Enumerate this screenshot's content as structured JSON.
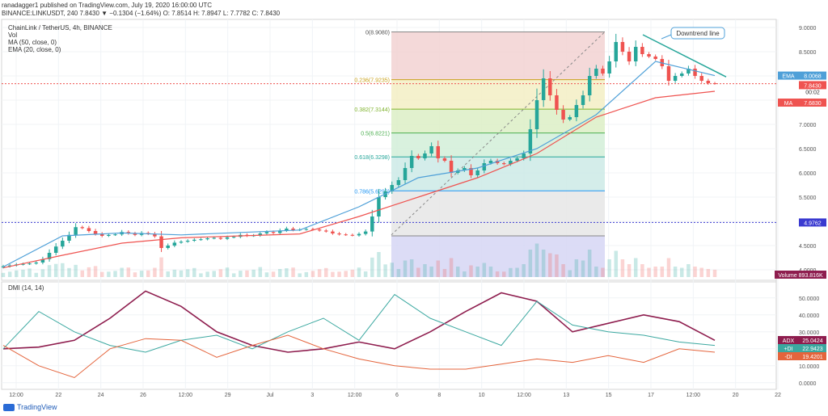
{
  "header": {
    "line1": "ranadagger1 published on TradingView.com, July 19, 2020 16:00:00 UTC",
    "line2": "BINANCE:LINKUSDT, 240  7.8430  ▼ −0.1304 (−1.64%)  O: 7.8514  H: 7.8947  L: 7.7782  C: 7.8430",
    "symbol": "ChainLink / TetherUS, 4h, BINANCE",
    "ind_vol": "Vol",
    "ind_ma": "MA (50, close, 0)",
    "ind_ema": "EMA (20, close, 0)",
    "dmi_label": "DMI (14, 14)"
  },
  "footer": {
    "brand": "TradingView"
  },
  "colors": {
    "up": "#26a69a",
    "down": "#ef5350",
    "ma": "#ef5350",
    "ema": "#4fa0d8",
    "adx": "#8e1d4e",
    "plus_di": "#3ba8a0",
    "minus_di": "#e4643c",
    "trendline": "#26a69a",
    "price_line": "#ef5350"
  },
  "chart_data": [
    {
      "type": "candlestick",
      "title": "ChainLink / TetherUS, 4h, BINANCE",
      "timeframe": "4h",
      "x_ticks": [
        "12:00",
        "22",
        "24",
        "26",
        "12:00",
        "29",
        "Jul",
        "3",
        "12:00",
        "6",
        "8",
        "10",
        "12:00",
        "13",
        "15",
        "17",
        "12:00",
        "20",
        "22"
      ],
      "y_ticks": [
        "4.0000",
        "4.5000",
        "5.0000",
        "5.5000",
        "6.0000",
        "6.5000",
        "7.0000",
        "7.5000",
        "8.0000",
        "8.5000",
        "9.0000"
      ],
      "ylim": [
        3.85,
        9.1
      ],
      "series": [
        {
          "name": "LINKUSDT close (approx.)",
          "values": [
            4.07,
            4.09,
            4.11,
            4.12,
            4.13,
            4.15,
            4.22,
            4.35,
            4.48,
            4.6,
            4.72,
            4.88,
            4.86,
            4.8,
            4.74,
            4.7,
            4.72,
            4.73,
            4.78,
            4.75,
            4.72,
            4.76,
            4.74,
            4.69,
            4.45,
            4.5,
            4.56,
            4.58,
            4.6,
            4.62,
            4.63,
            4.65,
            4.66,
            4.64,
            4.67,
            4.68,
            4.72,
            4.7,
            4.71,
            4.75,
            4.78,
            4.76,
            4.81,
            4.85,
            4.82,
            4.83,
            4.84,
            4.83,
            4.81,
            4.79,
            4.75,
            4.73,
            4.72,
            4.71,
            4.74,
            4.79,
            5.1,
            5.5,
            5.62,
            5.75,
            5.85,
            6.1,
            6.35,
            6.3,
            6.4,
            6.55,
            6.3,
            6.25,
            6.0,
            6.05,
            6.1,
            5.95,
            6.05,
            6.2,
            6.25,
            6.2,
            6.18,
            6.25,
            6.3,
            6.4,
            6.9,
            7.5,
            7.95,
            7.6,
            7.3,
            7.1,
            7.15,
            7.4,
            7.6,
            8.0,
            8.15,
            8.05,
            8.3,
            8.7,
            8.5,
            8.3,
            8.6,
            8.45,
            8.4,
            8.35,
            8.2,
            7.9,
            8.0,
            8.05,
            8.15,
            8.0,
            7.9,
            7.85,
            7.84
          ]
        },
        {
          "name": "MA (50, close, 0)",
          "values": [
            4.04,
            4.3,
            4.55,
            4.66,
            4.7,
            4.74,
            5.1,
            5.5,
            5.9,
            6.4,
            7.15,
            7.55,
            7.683
          ]
        },
        {
          "name": "EMA (20, close, 0)",
          "values": [
            4.06,
            4.7,
            4.76,
            4.72,
            4.77,
            4.82,
            5.3,
            5.9,
            6.1,
            6.5,
            7.2,
            8.3,
            8.0068
          ]
        }
      ],
      "fibonacci": [
        {
          "level": "0(8.9080)",
          "value": 8.908
        },
        {
          "level": "0.236(7.9235)",
          "value": 7.9235
        },
        {
          "level": "0.382(7.3144)",
          "value": 7.3144
        },
        {
          "level": "0.5(6.8221)",
          "value": 6.8221
        },
        {
          "level": "0.618(6.3298)",
          "value": 6.3298
        },
        {
          "level": "0.786(5.6290)",
          "value": 5.629
        },
        {
          "level": "1",
          "value": 4.7
        }
      ],
      "annotations": {
        "trendline": "Downtrend line",
        "support_level": {
          "value": 4.9762,
          "label": "4.9762"
        }
      },
      "price_tags": [
        {
          "label": "EMA",
          "value": "8.0068"
        },
        {
          "label": "",
          "value": "7.8430",
          "sub": "00:02"
        },
        {
          "label": "MA",
          "value": "7.6830"
        }
      ],
      "volume_tag": {
        "label": "Volume",
        "value": "893.816K"
      }
    },
    {
      "type": "line",
      "title": "DMI (14, 14)",
      "y_ticks": [
        "0.0000",
        "10.0000",
        "20.0000",
        "30.0000",
        "40.0000",
        "50.0000"
      ],
      "ylim": [
        -2,
        58
      ],
      "series": [
        {
          "name": "ADX",
          "values": [
            20,
            21,
            25,
            38,
            54,
            45,
            30,
            22,
            18,
            20,
            24,
            20,
            30,
            42,
            53,
            48,
            30,
            35,
            40,
            36,
            25
          ]
        },
        {
          "name": "+DI",
          "values": [
            20,
            42,
            30,
            22,
            18,
            25,
            28,
            20,
            30,
            38,
            25,
            52,
            38,
            30,
            22,
            48,
            34,
            30,
            28,
            24,
            22
          ]
        },
        {
          "name": "-DI",
          "values": [
            22,
            10,
            3,
            20,
            26,
            25,
            15,
            22,
            28,
            20,
            14,
            10,
            8,
            8,
            11,
            14,
            12,
            16,
            12,
            20,
            18
          ]
        }
      ],
      "value_tags": [
        {
          "label": "ADX",
          "value": "25.0424"
        },
        {
          "label": "+DI",
          "value": "22.9423"
        },
        {
          "label": "-DI",
          "value": "19.4201"
        }
      ]
    }
  ]
}
